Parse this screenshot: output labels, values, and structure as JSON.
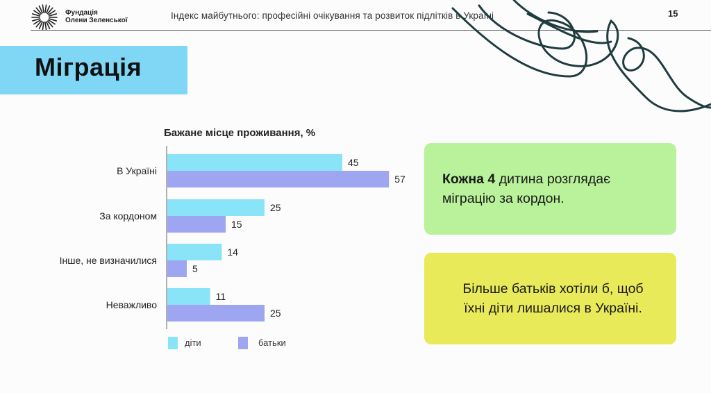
{
  "header": {
    "org_line1": "Фундація",
    "org_line2": "Олени Зеленської",
    "title": "Індекс майбутнього: професійні очікування та розвиток підлітків в Україні",
    "page_number": "15"
  },
  "slide": {
    "title": "Міграція"
  },
  "chart_data": {
    "type": "bar",
    "orientation": "horizontal",
    "title": "Бажане місце проживання, %",
    "categories": [
      "В Україні",
      "За кордоном",
      "Інше, не визначилися",
      "Неважливо"
    ],
    "series": [
      {
        "name": "діти",
        "values": [
          45,
          25,
          14,
          11
        ],
        "color": "#89e4f7"
      },
      {
        "name": "батьки",
        "values": [
          57,
          15,
          5,
          25
        ],
        "color": "#9ea6f2"
      }
    ],
    "xlim": [
      0,
      60
    ],
    "grid": false,
    "legend_position": "bottom-left"
  },
  "cards": [
    {
      "bold": "Кожна 4",
      "line1_rest": " дитина розглядає",
      "line2": "міграцію за кордон.",
      "color": "#b9f29a"
    },
    {
      "line1": "Більше батьків хотіли б, щоб",
      "line2": "їхні діти лишалися в Україні.",
      "color": "#e9ea59"
    }
  ],
  "icons": {
    "logo": "sunburst-logo-icon"
  }
}
